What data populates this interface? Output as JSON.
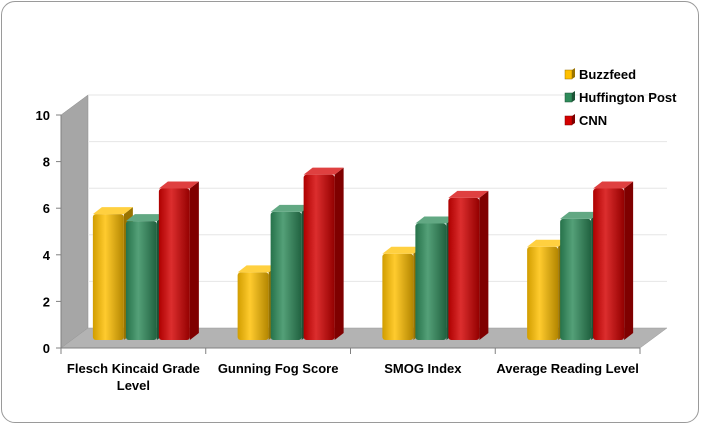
{
  "chart_data": {
    "type": "bar",
    "title": "",
    "xlabel": "",
    "ylabel": "",
    "ylim": [
      0,
      10
    ],
    "yticks": [
      "0",
      "2",
      "4",
      "6",
      "8",
      "10"
    ],
    "categories": [
      "Flesch Kincaid Grade Level",
      "Gunning Fog Score",
      "SMOG Index",
      "Average Reading Level"
    ],
    "category_lines": [
      [
        "Flesch Kincaid Grade",
        "Level"
      ],
      [
        "Gunning Fog Score"
      ],
      [
        "SMOG Index"
      ],
      [
        "Average Reading Level"
      ]
    ],
    "series": [
      {
        "name": "Buzzfeed",
        "values": [
          5.4,
          2.9,
          3.7,
          4.0
        ]
      },
      {
        "name": "Huffington Post",
        "values": [
          5.1,
          5.5,
          5.0,
          5.2
        ]
      },
      {
        "name": "CNN",
        "values": [
          6.5,
          7.1,
          6.1,
          6.5
        ]
      }
    ],
    "colors": [
      "#FFC000",
      "#2E8B5A",
      "#D40000"
    ],
    "legend_position": "top-right",
    "grid": true,
    "three_d": true
  }
}
